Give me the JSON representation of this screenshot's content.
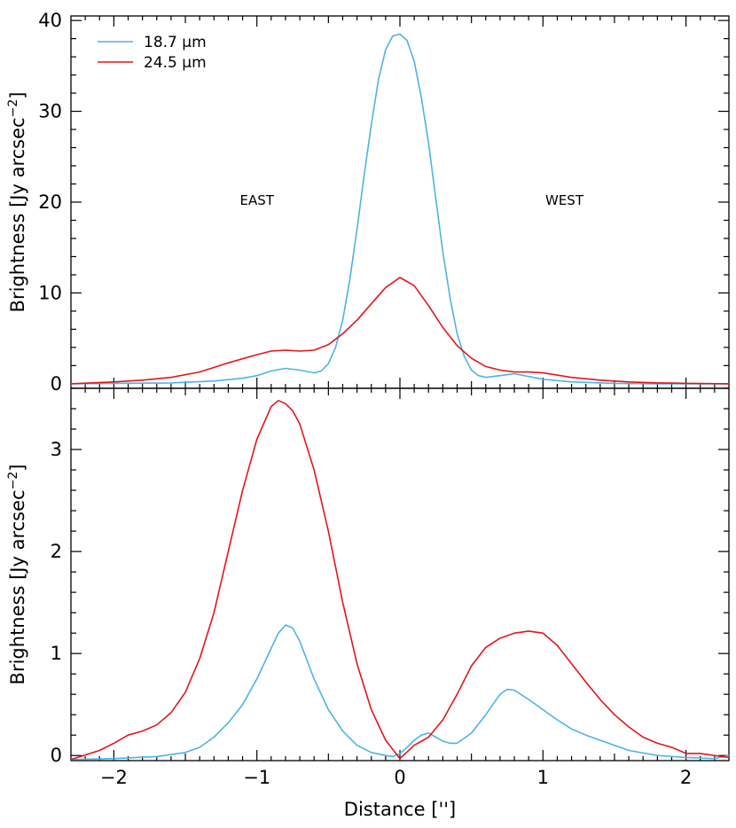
{
  "chart_data": [
    {
      "type": "line",
      "panel": "top",
      "ylabel": "Brightness [Jy arcsec",
      "ylabel_exponent": "−2",
      "ylabel_close": "]",
      "xlim": [
        -2.3,
        2.3
      ],
      "ylim": [
        -0.5,
        40.5
      ],
      "yticks": [
        0,
        10,
        20,
        30,
        40
      ],
      "ytick_labels": [
        "0",
        "10",
        "20",
        "30",
        "40"
      ],
      "annotations": [
        {
          "text": "EAST",
          "x": -1.0,
          "y": 20.2
        },
        {
          "text": "WEST",
          "x": 1.15,
          "y": 20.2
        }
      ],
      "legend": {
        "placement": "top-left",
        "entries": [
          {
            "label": "18.7 μm",
            "color": "#4db3e6"
          },
          {
            "label": "24.5 μm",
            "color": "#e3151a"
          }
        ]
      },
      "series": [
        {
          "name": "18.7 μm",
          "color": "#4db3e6",
          "x": [
            -2.3,
            -2.0,
            -1.6,
            -1.3,
            -1.1,
            -1.0,
            -0.9,
            -0.8,
            -0.7,
            -0.6,
            -0.55,
            -0.5,
            -0.45,
            -0.4,
            -0.35,
            -0.3,
            -0.25,
            -0.2,
            -0.15,
            -0.1,
            -0.05,
            0.0,
            0.05,
            0.1,
            0.15,
            0.2,
            0.25,
            0.3,
            0.35,
            0.4,
            0.45,
            0.5,
            0.55,
            0.6,
            0.7,
            0.8,
            0.9,
            1.0,
            1.2,
            1.5,
            1.8,
            2.0,
            2.3
          ],
          "y": [
            0.0,
            0.05,
            0.1,
            0.3,
            0.6,
            0.9,
            1.4,
            1.7,
            1.5,
            1.2,
            1.4,
            2.2,
            4.0,
            7.0,
            11.5,
            17.0,
            23.0,
            28.5,
            33.5,
            36.8,
            38.3,
            38.5,
            37.8,
            35.5,
            31.5,
            26.5,
            20.5,
            14.5,
            9.5,
            5.5,
            3.0,
            1.5,
            0.9,
            0.7,
            0.9,
            1.1,
            0.8,
            0.5,
            0.2,
            0.05,
            0.0,
            0.0,
            0.0
          ]
        },
        {
          "name": "24.5 μm",
          "color": "#e3151a",
          "x": [
            -2.3,
            -2.0,
            -1.8,
            -1.6,
            -1.4,
            -1.2,
            -1.0,
            -0.9,
            -0.8,
            -0.7,
            -0.6,
            -0.5,
            -0.4,
            -0.3,
            -0.2,
            -0.1,
            0.0,
            0.1,
            0.2,
            0.3,
            0.4,
            0.5,
            0.6,
            0.7,
            0.8,
            0.9,
            1.0,
            1.2,
            1.4,
            1.6,
            1.8,
            2.0,
            2.3
          ],
          "y": [
            0.0,
            0.2,
            0.4,
            0.7,
            1.3,
            2.3,
            3.2,
            3.6,
            3.7,
            3.6,
            3.7,
            4.3,
            5.5,
            7.0,
            8.8,
            10.6,
            11.7,
            10.8,
            8.6,
            6.2,
            4.2,
            2.8,
            1.9,
            1.5,
            1.3,
            1.3,
            1.2,
            0.7,
            0.4,
            0.2,
            0.1,
            0.05,
            0.0
          ]
        }
      ]
    },
    {
      "type": "line",
      "panel": "bottom",
      "xlabel": "Distance ['']",
      "ylabel": "Brightness [Jy arcsec",
      "ylabel_exponent": "−2",
      "ylabel_close": "]",
      "xlim": [
        -2.3,
        2.3
      ],
      "ylim": [
        -0.05,
        3.6
      ],
      "xticks": [
        -2,
        -1,
        0,
        1,
        2
      ],
      "xtick_labels": [
        "−2",
        "−1",
        "0",
        "1",
        "2"
      ],
      "yticks": [
        0,
        1,
        2,
        3
      ],
      "ytick_labels": [
        "0",
        "1",
        "2",
        "3"
      ],
      "series": [
        {
          "name": "18.7 μm",
          "color": "#4db3e6",
          "x": [
            -2.3,
            -2.0,
            -1.7,
            -1.5,
            -1.4,
            -1.3,
            -1.2,
            -1.1,
            -1.0,
            -0.9,
            -0.85,
            -0.8,
            -0.75,
            -0.7,
            -0.6,
            -0.5,
            -0.4,
            -0.3,
            -0.2,
            -0.1,
            -0.05,
            0.0,
            0.05,
            0.1,
            0.15,
            0.2,
            0.25,
            0.3,
            0.35,
            0.4,
            0.5,
            0.6,
            0.7,
            0.75,
            0.8,
            0.9,
            1.0,
            1.1,
            1.2,
            1.3,
            1.4,
            1.5,
            1.6,
            1.8,
            2.0,
            2.2,
            2.3
          ],
          "y": [
            -0.04,
            -0.03,
            -0.01,
            0.03,
            0.08,
            0.18,
            0.32,
            0.5,
            0.75,
            1.05,
            1.2,
            1.28,
            1.25,
            1.12,
            0.75,
            0.45,
            0.24,
            0.1,
            0.03,
            0.0,
            -0.01,
            0.02,
            0.08,
            0.15,
            0.2,
            0.22,
            0.18,
            0.14,
            0.12,
            0.12,
            0.22,
            0.4,
            0.6,
            0.65,
            0.64,
            0.55,
            0.45,
            0.35,
            0.26,
            0.2,
            0.15,
            0.1,
            0.05,
            0.0,
            -0.02,
            -0.03,
            0.0
          ]
        },
        {
          "name": "24.5 μm",
          "color": "#e3151a",
          "x": [
            -2.3,
            -2.1,
            -2.0,
            -1.9,
            -1.8,
            -1.7,
            -1.6,
            -1.5,
            -1.4,
            -1.3,
            -1.2,
            -1.1,
            -1.0,
            -0.9,
            -0.85,
            -0.8,
            -0.75,
            -0.7,
            -0.6,
            -0.5,
            -0.4,
            -0.3,
            -0.2,
            -0.1,
            0.0,
            0.1,
            0.2,
            0.3,
            0.4,
            0.5,
            0.6,
            0.7,
            0.8,
            0.9,
            1.0,
            1.1,
            1.2,
            1.3,
            1.4,
            1.5,
            1.6,
            1.7,
            1.8,
            1.9,
            2.0,
            2.1,
            2.3
          ],
          "y": [
            -0.04,
            0.05,
            0.12,
            0.2,
            0.24,
            0.3,
            0.42,
            0.62,
            0.95,
            1.4,
            2.0,
            2.6,
            3.1,
            3.42,
            3.48,
            3.45,
            3.38,
            3.25,
            2.8,
            2.2,
            1.5,
            0.9,
            0.45,
            0.15,
            -0.03,
            0.1,
            0.18,
            0.35,
            0.6,
            0.88,
            1.06,
            1.15,
            1.2,
            1.22,
            1.2,
            1.08,
            0.9,
            0.72,
            0.55,
            0.4,
            0.28,
            0.18,
            0.12,
            0.08,
            0.02,
            0.02,
            -0.02
          ]
        }
      ]
    }
  ]
}
